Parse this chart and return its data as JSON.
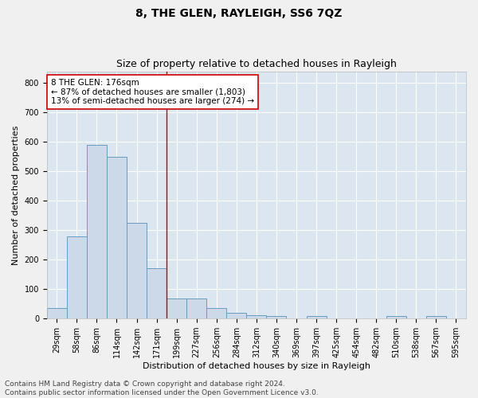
{
  "title": "8, THE GLEN, RAYLEIGH, SS6 7QZ",
  "subtitle": "Size of property relative to detached houses in Rayleigh",
  "xlabel": "Distribution of detached houses by size in Rayleigh",
  "ylabel": "Number of detached properties",
  "bar_labels": [
    "29sqm",
    "58sqm",
    "86sqm",
    "114sqm",
    "142sqm",
    "171sqm",
    "199sqm",
    "227sqm",
    "256sqm",
    "284sqm",
    "312sqm",
    "340sqm",
    "369sqm",
    "397sqm",
    "425sqm",
    "454sqm",
    "482sqm",
    "510sqm",
    "538sqm",
    "567sqm",
    "595sqm"
  ],
  "bar_values": [
    35,
    280,
    590,
    550,
    325,
    170,
    68,
    68,
    35,
    20,
    12,
    8,
    0,
    8,
    0,
    0,
    0,
    8,
    0,
    8,
    0
  ],
  "bar_color": "#ccd9e8",
  "bar_edge_color": "#6a9cc0",
  "vline_x": 5.5,
  "vline_color": "#cc0000",
  "annotation_text": "8 THE GLEN: 176sqm\n← 87% of detached houses are smaller (1,803)\n13% of semi-detached houses are larger (274) →",
  "annotation_box_color": "#ffffff",
  "annotation_box_edge": "#cc0000",
  "ylim": [
    0,
    840
  ],
  "yticks": [
    0,
    100,
    200,
    300,
    400,
    500,
    600,
    700,
    800
  ],
  "background_color": "#dce6f0",
  "fig_background": "#f0f0f0",
  "grid_color": "#ffffff",
  "footer_line1": "Contains HM Land Registry data © Crown copyright and database right 2024.",
  "footer_line2": "Contains public sector information licensed under the Open Government Licence v3.0.",
  "title_fontsize": 10,
  "subtitle_fontsize": 9,
  "axis_label_fontsize": 8,
  "tick_fontsize": 7,
  "annotation_fontsize": 7.5,
  "footer_fontsize": 6.5
}
